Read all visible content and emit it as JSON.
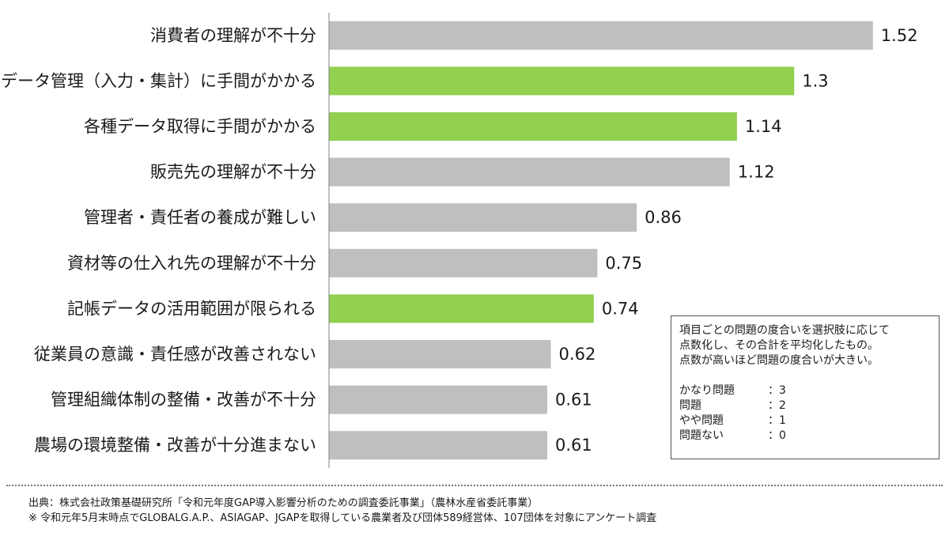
{
  "chart_data": {
    "type": "bar",
    "orientation": "horizontal",
    "categories": [
      "消費者の理解が不十分",
      "データ管理（入力・集計）に手間がかかる",
      "各種データ取得に手間がかかる",
      "販売先の理解が不十分",
      "管理者・責任者の養成が難しい",
      "資材等の仕入れ先の理解が不十分",
      "記帳データの活用範囲が限られる",
      "従業員の意識・責任感が改善されない",
      "管理組織体制の整備・改善が不十分",
      "農場の環境整備・改善が十分進まない"
    ],
    "values": [
      1.52,
      1.3,
      1.14,
      1.12,
      0.86,
      0.75,
      0.74,
      0.62,
      0.61,
      0.61
    ],
    "value_labels": [
      "1.52",
      "1.3",
      "1.14",
      "1.12",
      "0.86",
      "0.75",
      "0.74",
      "0.62",
      "0.61",
      "0.61"
    ],
    "highlighted": [
      false,
      true,
      true,
      false,
      false,
      false,
      true,
      false,
      false,
      false
    ],
    "xlim": [
      0,
      1.6
    ],
    "title": "",
    "xlabel": "",
    "ylabel": "",
    "grid": false,
    "colors": {
      "default": "#bfbfbf",
      "highlight": "#92d050",
      "axis": "#808080"
    }
  },
  "legend_note": {
    "lines": [
      "項目ごとの問題の度合いを選択肢に応じて",
      "点数化し、その合計を平均化したもの。",
      "点数が高いほど問題の度合いが大きい。"
    ],
    "scale": [
      {
        "name": "かなり問題",
        "value": "：3"
      },
      {
        "name": "問題",
        "value": "：2"
      },
      {
        "name": "やや問題",
        "value": "：1"
      },
      {
        "name": "問題ない",
        "value": "：0"
      }
    ]
  },
  "footer": {
    "source": "出典：株式会社政策基礎研究所「令和元年度GAP導入影響分析のための調査委託事業」（農林水産省委託事業）",
    "note": "※ 令和元年5月末時点でGLOBALG.A.P.、ASIAGAP、JGAPを取得している農業者及び団体589経営体、107団体を対象にアンケート調査"
  }
}
